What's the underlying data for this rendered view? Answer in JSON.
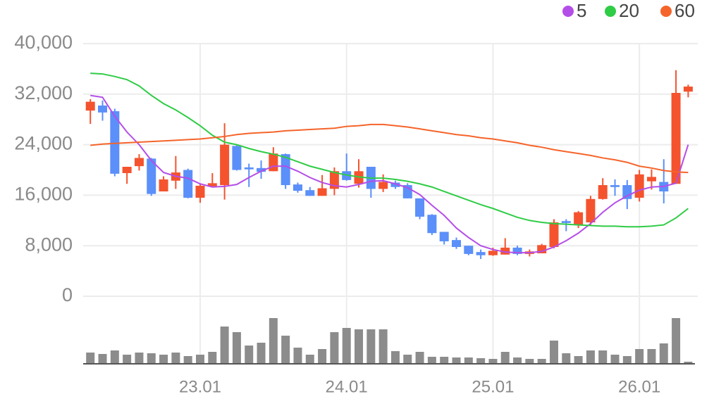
{
  "chart_data": {
    "type": "candlestick",
    "categories": [
      null,
      null,
      null,
      null,
      null,
      null,
      null,
      null,
      null,
      "23.01",
      null,
      null,
      null,
      null,
      null,
      null,
      null,
      null,
      null,
      null,
      null,
      "24.01",
      null,
      null,
      null,
      null,
      null,
      null,
      null,
      null,
      null,
      null,
      null,
      "25.01",
      null,
      null,
      null,
      null,
      null,
      null,
      null,
      null,
      null,
      null,
      null,
      "26.01",
      null,
      null,
      null,
      null
    ],
    "open": [
      29400,
      30200,
      29300,
      19500,
      20600,
      21800,
      16600,
      18300,
      20000,
      15600,
      17400,
      17600,
      23800,
      20400,
      20300,
      19800,
      22500,
      17700,
      16800,
      15900,
      17000,
      19800,
      17800,
      20500,
      17000,
      18000,
      17600,
      15500,
      12900,
      10200,
      8900,
      8000,
      7000,
      6500,
      6600,
      7700,
      6700,
      6800,
      7800,
      11900,
      11300,
      11700,
      15400,
      17600,
      17600,
      15600,
      18200,
      18100,
      17800,
      32400
    ],
    "high": [
      31200,
      31000,
      29700,
      20500,
      22500,
      21900,
      19000,
      22200,
      20200,
      17800,
      19500,
      27400,
      24000,
      21000,
      21500,
      23600,
      22600,
      18000,
      17300,
      19200,
      20400,
      22600,
      21700,
      20500,
      19300,
      18300,
      17900,
      15500,
      13000,
      10200,
      9300,
      8000,
      7400,
      7700,
      9200,
      8000,
      7400,
      8300,
      12200,
      12200,
      13500,
      15900,
      18700,
      18500,
      18400,
      20000,
      20100,
      21700,
      35800,
      33500
    ],
    "low": [
      27300,
      27800,
      19000,
      17800,
      19900,
      15900,
      16600,
      17000,
      15500,
      14800,
      17300,
      15300,
      19900,
      17300,
      18600,
      19800,
      17000,
      16400,
      15900,
      15900,
      16000,
      18300,
      17200,
      15600,
      16500,
      17000,
      15500,
      12200,
      9700,
      8200,
      7500,
      6500,
      5900,
      6400,
      6600,
      6500,
      6300,
      6800,
      7600,
      10300,
      10800,
      11300,
      15300,
      15900,
      13800,
      15000,
      16900,
      14700,
      17800,
      31500
    ],
    "close": [
      30800,
      29100,
      19400,
      20500,
      21900,
      16200,
      18500,
      19600,
      15600,
      17500,
      17900,
      24000,
      20000,
      20100,
      19700,
      22600,
      17600,
      16700,
      15900,
      17100,
      19800,
      18400,
      19800,
      17000,
      18100,
      17300,
      15500,
      12600,
      10000,
      8700,
      7800,
      6700,
      6500,
      7200,
      7700,
      6700,
      7100,
      8100,
      11700,
      11600,
      13300,
      15400,
      17600,
      17300,
      15400,
      19300,
      18900,
      16600,
      32200,
      33200
    ],
    "up_color": "#f4532e",
    "down_color": "#5b8ff9",
    "series": [
      {
        "name": "5",
        "color": "#b44ee8",
        "values": [
          31800,
          31500,
          28500,
          26000,
          24000,
          21500,
          19600,
          19000,
          18700,
          17800,
          17300,
          17400,
          17700,
          18800,
          19800,
          20600,
          20600,
          19800,
          18800,
          18000,
          17500,
          17300,
          17700,
          18200,
          18300,
          17800,
          17200,
          16100,
          14400,
          12800,
          10800,
          9300,
          8000,
          7400,
          7000,
          6900,
          6900,
          7100,
          7800,
          8800,
          10000,
          11500,
          13300,
          14800,
          15900,
          16800,
          17300,
          17400,
          17900,
          24000
        ]
      },
      {
        "name": "20",
        "color": "#2fcc45",
        "values": [
          35300,
          35200,
          34800,
          34300,
          33300,
          31800,
          30500,
          29500,
          28300,
          27000,
          25500,
          24400,
          24000,
          23400,
          22900,
          22500,
          22000,
          21300,
          20600,
          20100,
          19600,
          19200,
          18900,
          18700,
          18700,
          18500,
          18200,
          17800,
          17300,
          16600,
          15900,
          15200,
          14500,
          13900,
          13200,
          12500,
          12000,
          11700,
          11500,
          11400,
          11300,
          11200,
          11100,
          11100,
          11000,
          11000,
          11100,
          11300,
          12400,
          13900
        ]
      },
      {
        "name": "60",
        "color": "#f5642a",
        "values": [
          23900,
          24100,
          24200,
          24300,
          24400,
          24500,
          24600,
          24700,
          24800,
          24900,
          25100,
          25300,
          25600,
          25800,
          25900,
          26000,
          26200,
          26300,
          26400,
          26500,
          26600,
          26900,
          27000,
          27200,
          27200,
          27000,
          26800,
          26500,
          26200,
          25900,
          25600,
          25400,
          25100,
          24900,
          24600,
          24300,
          23900,
          23600,
          23200,
          22900,
          22600,
          22300,
          21900,
          21600,
          21200,
          20600,
          20300,
          19900,
          19700,
          19600
        ]
      }
    ],
    "volume": {
      "color": "#8c8c8c",
      "values": [
        15,
        13,
        18,
        12,
        15,
        14,
        12,
        15,
        10,
        12,
        16,
        52,
        44,
        25,
        29,
        64,
        39,
        22,
        12,
        20,
        44,
        50,
        48,
        48,
        48,
        17,
        12,
        16,
        9,
        9,
        8,
        8,
        7,
        6,
        16,
        8,
        6,
        6,
        32,
        14,
        10,
        18,
        18,
        12,
        10,
        20,
        20,
        28,
        64,
        2
      ]
    },
    "ylim": [
      0,
      40000
    ],
    "yticks": [
      0,
      {
        "value": 8000,
        "label": "8,000"
      },
      {
        "value": 16000,
        "label": "16,000"
      },
      {
        "value": 24000,
        "label": "24,000"
      },
      {
        "value": 32000,
        "label": "32,000"
      },
      {
        "value": 40000,
        "label": "40,000"
      }
    ],
    "grid": true
  }
}
